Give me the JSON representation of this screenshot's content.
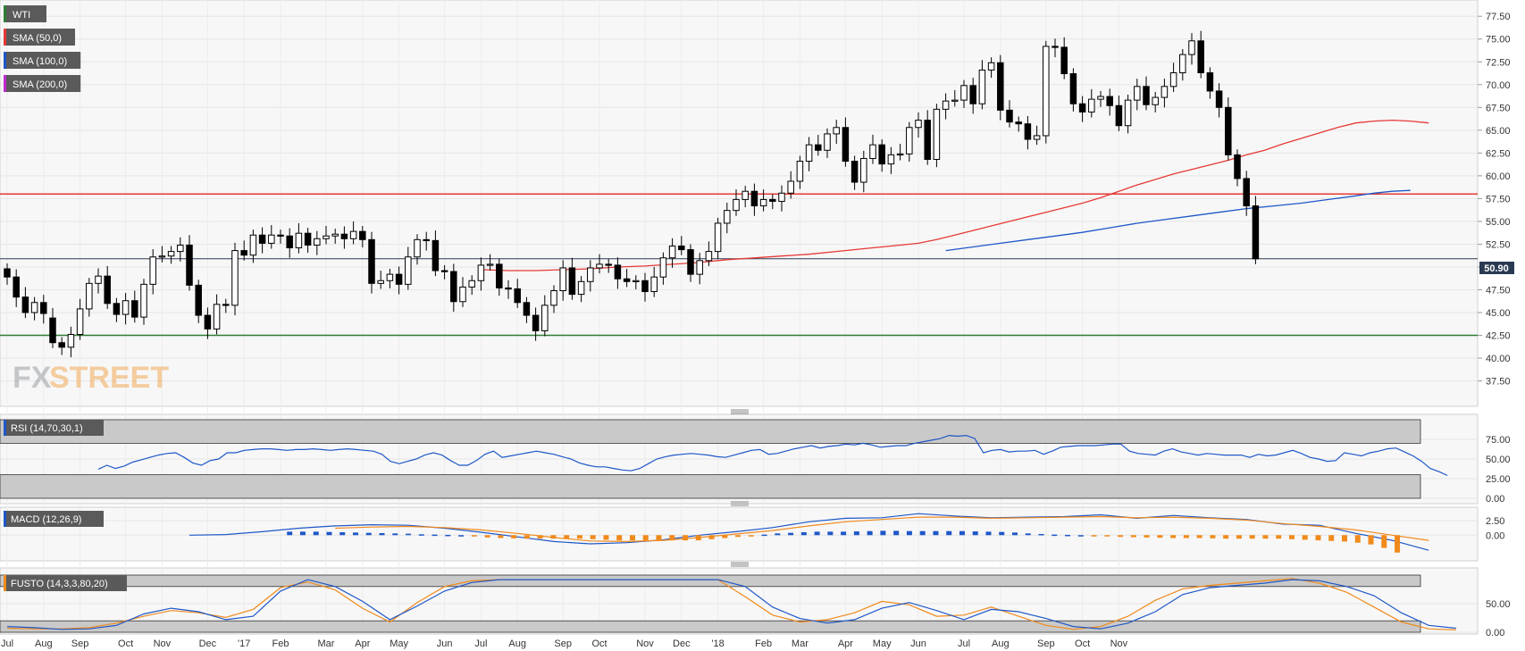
{
  "chart_data": {
    "type": "candlestick",
    "instrument": "WTI",
    "period": "weekly",
    "last_price": "50.90",
    "legend": [
      {
        "label": "WTI",
        "color": "#2e7d32"
      },
      {
        "label": "SMA (50,0)",
        "color": "#e53935"
      },
      {
        "label": "SMA (100,0)",
        "color": "#1e57c8"
      },
      {
        "label": "SMA (200,0)",
        "color": "#c02ad0"
      }
    ],
    "price_ticks": [
      "77.50",
      "75.00",
      "72.50",
      "70.00",
      "67.50",
      "65.00",
      "62.50",
      "60.00",
      "57.50",
      "55.00",
      "52.50",
      "50.00",
      "47.50",
      "45.00",
      "42.50",
      "40.00",
      "37.50"
    ],
    "price_range": [
      35.5,
      78.5
    ],
    "horizontal_levels": [
      {
        "value": 58.0,
        "color": "#e53935"
      },
      {
        "value": 42.5,
        "color": "#2e7d32"
      },
      {
        "value": 50.9,
        "color": "#2a3a52"
      }
    ],
    "months": [
      "Jul",
      "Aug",
      "Sep",
      "Oct",
      "Nov",
      "Dec",
      "'17",
      "Feb",
      "Mar",
      "Apr",
      "May",
      "Jun",
      "Jul",
      "Aug",
      "Sep",
      "Oct",
      "Nov",
      "Dec",
      "'18",
      "Feb",
      "Mar",
      "Apr",
      "May",
      "Jun",
      "Jul",
      "Aug",
      "Sep",
      "Oct",
      "Nov"
    ],
    "candles_close": [
      48.9,
      46.7,
      45.0,
      46.1,
      44.9,
      41.7,
      41.2,
      42.6,
      45.4,
      48.2,
      49.0,
      46.0,
      44.8,
      46.3,
      44.5,
      48.1,
      51.1,
      51.2,
      51.7,
      52.4,
      48.0,
      44.7,
      43.2,
      45.9,
      45.8,
      51.8,
      51.3,
      53.5,
      52.6,
      53.5,
      53.4,
      52.1,
      53.7,
      52.4,
      53.1,
      53.4,
      53.6,
      53.1,
      53.9,
      53.0,
      48.2,
      48.5,
      49.2,
      48.1,
      51.1,
      53.0,
      52.9,
      49.6,
      49.5,
      46.2,
      47.8,
      48.5,
      50.2,
      50.3,
      47.7,
      47.6,
      46.1,
      44.7,
      43.0,
      45.8,
      47.4,
      49.9,
      47.0,
      48.4,
      49.9,
      50.3,
      50.2,
      48.7,
      48.4,
      48.5,
      47.3,
      48.9,
      51.0,
      52.3,
      51.9,
      49.2,
      50.7,
      51.7,
      54.8,
      56.2,
      57.4,
      58.3,
      56.7,
      57.4,
      57.2,
      58.1,
      59.4,
      61.6,
      63.4,
      62.8,
      64.6,
      65.3,
      61.6,
      59.3,
      61.9,
      63.4,
      61.3,
      62.3,
      62.4,
      65.3,
      66.1,
      61.8,
      67.3,
      68.2,
      68.3,
      69.9,
      67.9,
      71.6,
      72.4,
      67.2,
      65.9,
      65.7,
      64.0,
      64.4,
      74.2,
      74.1,
      71.2,
      67.9,
      67.0,
      68.4,
      68.7,
      67.7,
      65.5,
      68.3,
      69.8,
      67.8,
      68.6,
      69.8,
      71.3,
      73.3,
      74.8,
      71.3,
      69.3,
      67.5,
      62.3,
      59.7,
      56.7,
      50.9
    ],
    "candles_open": [
      49.8,
      48.9,
      46.7,
      45.0,
      46.1,
      44.4,
      41.7,
      41.2,
      42.6,
      45.4,
      48.2,
      49.0,
      46.0,
      44.8,
      46.3,
      44.5,
      48.1,
      51.1,
      51.2,
      51.7,
      52.4,
      48.0,
      44.7,
      43.2,
      45.9,
      45.8,
      51.8,
      51.3,
      53.5,
      52.6,
      53.5,
      53.4,
      52.1,
      53.7,
      52.4,
      53.1,
      53.4,
      53.6,
      53.1,
      53.9,
      53.0,
      48.2,
      48.5,
      49.2,
      48.1,
      51.1,
      53.0,
      52.9,
      49.6,
      49.5,
      46.2,
      47.8,
      48.5,
      50.2,
      50.3,
      47.7,
      47.6,
      46.1,
      44.7,
      43.0,
      45.8,
      47.4,
      49.9,
      47.0,
      48.4,
      49.9,
      50.3,
      50.2,
      48.7,
      48.4,
      48.5,
      47.3,
      48.9,
      51.0,
      52.3,
      51.9,
      49.2,
      50.7,
      51.7,
      54.8,
      56.2,
      57.4,
      58.3,
      56.7,
      57.4,
      57.2,
      58.1,
      59.4,
      61.6,
      63.4,
      62.8,
      64.6,
      65.3,
      61.6,
      59.3,
      61.9,
      63.4,
      61.3,
      62.3,
      62.4,
      65.3,
      66.1,
      61.8,
      67.3,
      68.2,
      68.3,
      69.9,
      67.9,
      71.6,
      72.4,
      67.2,
      65.9,
      65.7,
      64.0,
      64.4,
      74.2,
      74.1,
      71.2,
      67.9,
      67.0,
      68.4,
      68.7,
      67.7,
      65.5,
      68.3,
      69.8,
      67.8,
      68.6,
      69.8,
      71.3,
      73.3,
      74.8,
      71.3,
      69.3,
      67.5,
      62.3,
      59.7,
      56.7
    ],
    "sma50": [
      [
        52,
        49.7
      ],
      [
        55,
        49.6
      ],
      [
        58,
        49.6
      ],
      [
        61,
        49.7
      ],
      [
        64,
        49.8
      ],
      [
        67,
        50.0
      ],
      [
        70,
        50.1
      ],
      [
        73,
        50.3
      ],
      [
        76,
        50.5
      ],
      [
        79,
        50.8
      ],
      [
        82,
        51.0
      ],
      [
        85,
        51.2
      ],
      [
        88,
        51.4
      ],
      [
        91,
        51.7
      ],
      [
        94,
        52.0
      ],
      [
        97,
        52.3
      ],
      [
        100,
        52.6
      ],
      [
        102,
        53.0
      ],
      [
        104,
        53.5
      ],
      [
        106,
        54.0
      ],
      [
        108,
        54.5
      ],
      [
        110,
        55.0
      ],
      [
        112,
        55.5
      ],
      [
        114,
        56.0
      ],
      [
        116,
        56.5
      ],
      [
        118,
        57.0
      ],
      [
        120,
        57.6
      ],
      [
        122,
        58.3
      ],
      [
        124,
        59.0
      ],
      [
        126,
        59.6
      ],
      [
        128,
        60.2
      ],
      [
        130,
        60.7
      ],
      [
        132,
        61.2
      ],
      [
        134,
        61.7
      ],
      [
        136,
        62.3
      ],
      [
        138,
        62.8
      ],
      [
        140,
        63.5
      ],
      [
        142,
        64.1
      ],
      [
        144,
        64.7
      ],
      [
        146,
        65.3
      ],
      [
        148,
        65.8
      ],
      [
        150,
        66.0
      ],
      [
        152,
        66.1
      ],
      [
        154,
        66.0
      ],
      [
        156,
        65.8
      ]
    ],
    "sma100": [
      [
        103,
        51.8
      ],
      [
        106,
        52.2
      ],
      [
        109,
        52.6
      ],
      [
        112,
        53.0
      ],
      [
        115,
        53.4
      ],
      [
        118,
        53.8
      ],
      [
        121,
        54.3
      ],
      [
        124,
        54.8
      ],
      [
        127,
        55.2
      ],
      [
        130,
        55.6
      ],
      [
        133,
        56.0
      ],
      [
        136,
        56.4
      ],
      [
        139,
        56.7
      ],
      [
        142,
        57.0
      ],
      [
        145,
        57.4
      ],
      [
        148,
        57.8
      ],
      [
        150,
        58.1
      ],
      [
        152,
        58.3
      ],
      [
        154,
        58.4
      ]
    ],
    "rsi": {
      "label": "RSI (14,70,30,1)",
      "ticks": [
        "75.00",
        "50.00",
        "25.00",
        "0.00"
      ],
      "range": [
        0,
        100
      ],
      "values": [
        37,
        42,
        38,
        41,
        46,
        49,
        52,
        55,
        57,
        58,
        52,
        45,
        42,
        48,
        50,
        58,
        58,
        61,
        62,
        63,
        63,
        62,
        61,
        62,
        62,
        63,
        62,
        61,
        62,
        63,
        62,
        61,
        60,
        56,
        47,
        44,
        47,
        50,
        55,
        58,
        55,
        48,
        42,
        42,
        48,
        56,
        60,
        52,
        54,
        56,
        58,
        60,
        58,
        56,
        53,
        50,
        45,
        42,
        40,
        40,
        38,
        36,
        35,
        38,
        44,
        50,
        53,
        55,
        56,
        57,
        56,
        55,
        53,
        52,
        55,
        58,
        61,
        62,
        56,
        57,
        60,
        63,
        65,
        67,
        64,
        66,
        67,
        69,
        68,
        70,
        68,
        65,
        66,
        67,
        67,
        70,
        72,
        74,
        76,
        80,
        79,
        80,
        76,
        58,
        61,
        62,
        59,
        60,
        60,
        61,
        56,
        60,
        65,
        66,
        67,
        67,
        67,
        68,
        69,
        69,
        60,
        57,
        56,
        55,
        60,
        63,
        59,
        57,
        55,
        57,
        56,
        55,
        55,
        55,
        52,
        56,
        54,
        55,
        58,
        61,
        57,
        52,
        50,
        47,
        48,
        58,
        56,
        54,
        58,
        60,
        63,
        64,
        59,
        54,
        47,
        38,
        34,
        29
      ]
    },
    "macd": {
      "label": "MACD (12,26,9)",
      "ticks": [
        "2.50",
        "0.00"
      ],
      "range": [
        -3.5,
        4.2
      ],
      "macd_line": [
        [
          20,
          0.0
        ],
        [
          24,
          0.1
        ],
        [
          28,
          0.6
        ],
        [
          32,
          1.2
        ],
        [
          36,
          1.6
        ],
        [
          40,
          1.8
        ],
        [
          44,
          1.7
        ],
        [
          48,
          1.2
        ],
        [
          52,
          0.5
        ],
        [
          56,
          -0.3
        ],
        [
          60,
          -1.1
        ],
        [
          64,
          -1.5
        ],
        [
          68,
          -1.3
        ],
        [
          72,
          -0.8
        ],
        [
          76,
          0.0
        ],
        [
          80,
          0.6
        ],
        [
          84,
          1.3
        ],
        [
          88,
          2.3
        ],
        [
          92,
          2.9
        ],
        [
          96,
          3.0
        ],
        [
          100,
          3.7
        ],
        [
          104,
          3.3
        ],
        [
          108,
          3.0
        ],
        [
          112,
          3.1
        ],
        [
          116,
          3.2
        ],
        [
          120,
          3.5
        ],
        [
          124,
          2.9
        ],
        [
          128,
          3.4
        ],
        [
          132,
          3.0
        ],
        [
          136,
          2.7
        ],
        [
          140,
          1.9
        ],
        [
          144,
          1.7
        ],
        [
          148,
          0.3
        ],
        [
          152,
          -0.9
        ],
        [
          156,
          -2.6
        ]
      ],
      "signal_line": [
        [
          36,
          1.2
        ],
        [
          40,
          1.4
        ],
        [
          44,
          1.5
        ],
        [
          48,
          1.3
        ],
        [
          52,
          0.9
        ],
        [
          56,
          0.3
        ],
        [
          60,
          -0.4
        ],
        [
          64,
          -1.0
        ],
        [
          68,
          -1.1
        ],
        [
          72,
          -0.9
        ],
        [
          76,
          -0.4
        ],
        [
          80,
          0.2
        ],
        [
          84,
          0.8
        ],
        [
          88,
          1.6
        ],
        [
          92,
          2.3
        ],
        [
          96,
          2.7
        ],
        [
          100,
          3.1
        ],
        [
          104,
          3.1
        ],
        [
          108,
          2.9
        ],
        [
          112,
          3.0
        ],
        [
          116,
          3.1
        ],
        [
          120,
          3.2
        ],
        [
          124,
          3.0
        ],
        [
          128,
          3.1
        ],
        [
          132,
          2.9
        ],
        [
          136,
          2.6
        ],
        [
          140,
          2.0
        ],
        [
          144,
          1.5
        ],
        [
          148,
          0.9
        ],
        [
          152,
          0.0
        ],
        [
          156,
          -0.9
        ]
      ],
      "histogram": [
        0.6,
        0.6,
        0.6,
        0.55,
        0.5,
        0.45,
        0.4,
        0.35,
        0.3,
        0.25,
        0.15,
        0.1,
        0.05,
        0.0,
        -0.2,
        -0.4,
        -0.5,
        -0.55,
        -0.6,
        -0.6,
        -0.6,
        -0.6,
        -0.6,
        -0.7,
        -0.8,
        -0.9,
        -0.9,
        -0.9,
        -0.9,
        -0.9,
        -0.9,
        -0.9,
        -0.7,
        -0.5,
        -0.3,
        -0.1,
        0.1,
        0.3,
        0.4,
        0.5,
        0.6,
        0.6,
        0.6,
        0.65,
        0.7,
        0.75,
        0.75,
        0.7,
        0.7,
        0.7,
        0.7,
        0.7,
        0.65,
        0.6,
        0.55,
        0.45,
        0.3,
        0.2,
        0.1,
        0.05,
        0.0,
        -0.1,
        -0.2,
        -0.3,
        -0.35,
        -0.4,
        -0.45,
        -0.5,
        -0.5,
        -0.5,
        -0.55,
        -0.6,
        -0.6,
        -0.6,
        -0.6,
        -0.6,
        -0.7,
        -0.8,
        -0.9,
        -1.0,
        -1.1,
        -1.3,
        -1.6,
        -2.2,
        -3.0
      ]
    },
    "fusto": {
      "label": "FUSTO (14,3,3,80,20)",
      "ticks": [
        "50.00",
        "0.00"
      ],
      "range": [
        0,
        100
      ],
      "k": [
        [
          0,
          10
        ],
        [
          3,
          8
        ],
        [
          6,
          5
        ],
        [
          9,
          6
        ],
        [
          12,
          12
        ],
        [
          15,
          32
        ],
        [
          18,
          42
        ],
        [
          21,
          36
        ],
        [
          24,
          22
        ],
        [
          27,
          28
        ],
        [
          30,
          72
        ],
        [
          33,
          92
        ],
        [
          36,
          80
        ],
        [
          39,
          54
        ],
        [
          42,
          22
        ],
        [
          45,
          46
        ],
        [
          48,
          72
        ],
        [
          51,
          87
        ],
        [
          54,
          92
        ],
        [
          57,
          92
        ],
        [
          60,
          92
        ],
        [
          63,
          92
        ],
        [
          66,
          92
        ],
        [
          69,
          92
        ],
        [
          72,
          92
        ],
        [
          75,
          92
        ],
        [
          78,
          92
        ],
        [
          81,
          80
        ],
        [
          84,
          44
        ],
        [
          87,
          24
        ],
        [
          90,
          16
        ],
        [
          93,
          22
        ],
        [
          96,
          42
        ],
        [
          99,
          52
        ],
        [
          102,
          38
        ],
        [
          105,
          22
        ],
        [
          108,
          40
        ],
        [
          111,
          36
        ],
        [
          114,
          24
        ],
        [
          117,
          10
        ],
        [
          120,
          6
        ],
        [
          123,
          16
        ],
        [
          126,
          36
        ],
        [
          129,
          66
        ],
        [
          132,
          78
        ],
        [
          135,
          82
        ],
        [
          138,
          86
        ],
        [
          141,
          92
        ],
        [
          144,
          90
        ],
        [
          147,
          80
        ],
        [
          150,
          64
        ],
        [
          153,
          34
        ],
        [
          156,
          12
        ],
        [
          159,
          7
        ]
      ],
      "d": [
        [
          0,
          7
        ],
        [
          3,
          6
        ],
        [
          6,
          6
        ],
        [
          9,
          8
        ],
        [
          12,
          16
        ],
        [
          15,
          28
        ],
        [
          18,
          38
        ],
        [
          21,
          34
        ],
        [
          24,
          26
        ],
        [
          27,
          40
        ],
        [
          30,
          78
        ],
        [
          33,
          88
        ],
        [
          36,
          74
        ],
        [
          39,
          42
        ],
        [
          42,
          18
        ],
        [
          45,
          52
        ],
        [
          48,
          80
        ],
        [
          51,
          90
        ],
        [
          54,
          92
        ],
        [
          57,
          92
        ],
        [
          60,
          92
        ],
        [
          63,
          92
        ],
        [
          66,
          92
        ],
        [
          69,
          92
        ],
        [
          72,
          92
        ],
        [
          75,
          92
        ],
        [
          78,
          92
        ],
        [
          81,
          62
        ],
        [
          84,
          30
        ],
        [
          87,
          18
        ],
        [
          90,
          22
        ],
        [
          93,
          34
        ],
        [
          96,
          54
        ],
        [
          99,
          48
        ],
        [
          102,
          28
        ],
        [
          105,
          30
        ],
        [
          108,
          44
        ],
        [
          111,
          28
        ],
        [
          114,
          12
        ],
        [
          117,
          5
        ],
        [
          120,
          10
        ],
        [
          123,
          28
        ],
        [
          126,
          56
        ],
        [
          129,
          76
        ],
        [
          132,
          82
        ],
        [
          135,
          86
        ],
        [
          138,
          90
        ],
        [
          141,
          94
        ],
        [
          144,
          86
        ],
        [
          147,
          70
        ],
        [
          150,
          44
        ],
        [
          153,
          18
        ],
        [
          156,
          6
        ],
        [
          159,
          4
        ]
      ]
    },
    "watermark": {
      "part1": "FX",
      "part2": "STREET"
    }
  }
}
